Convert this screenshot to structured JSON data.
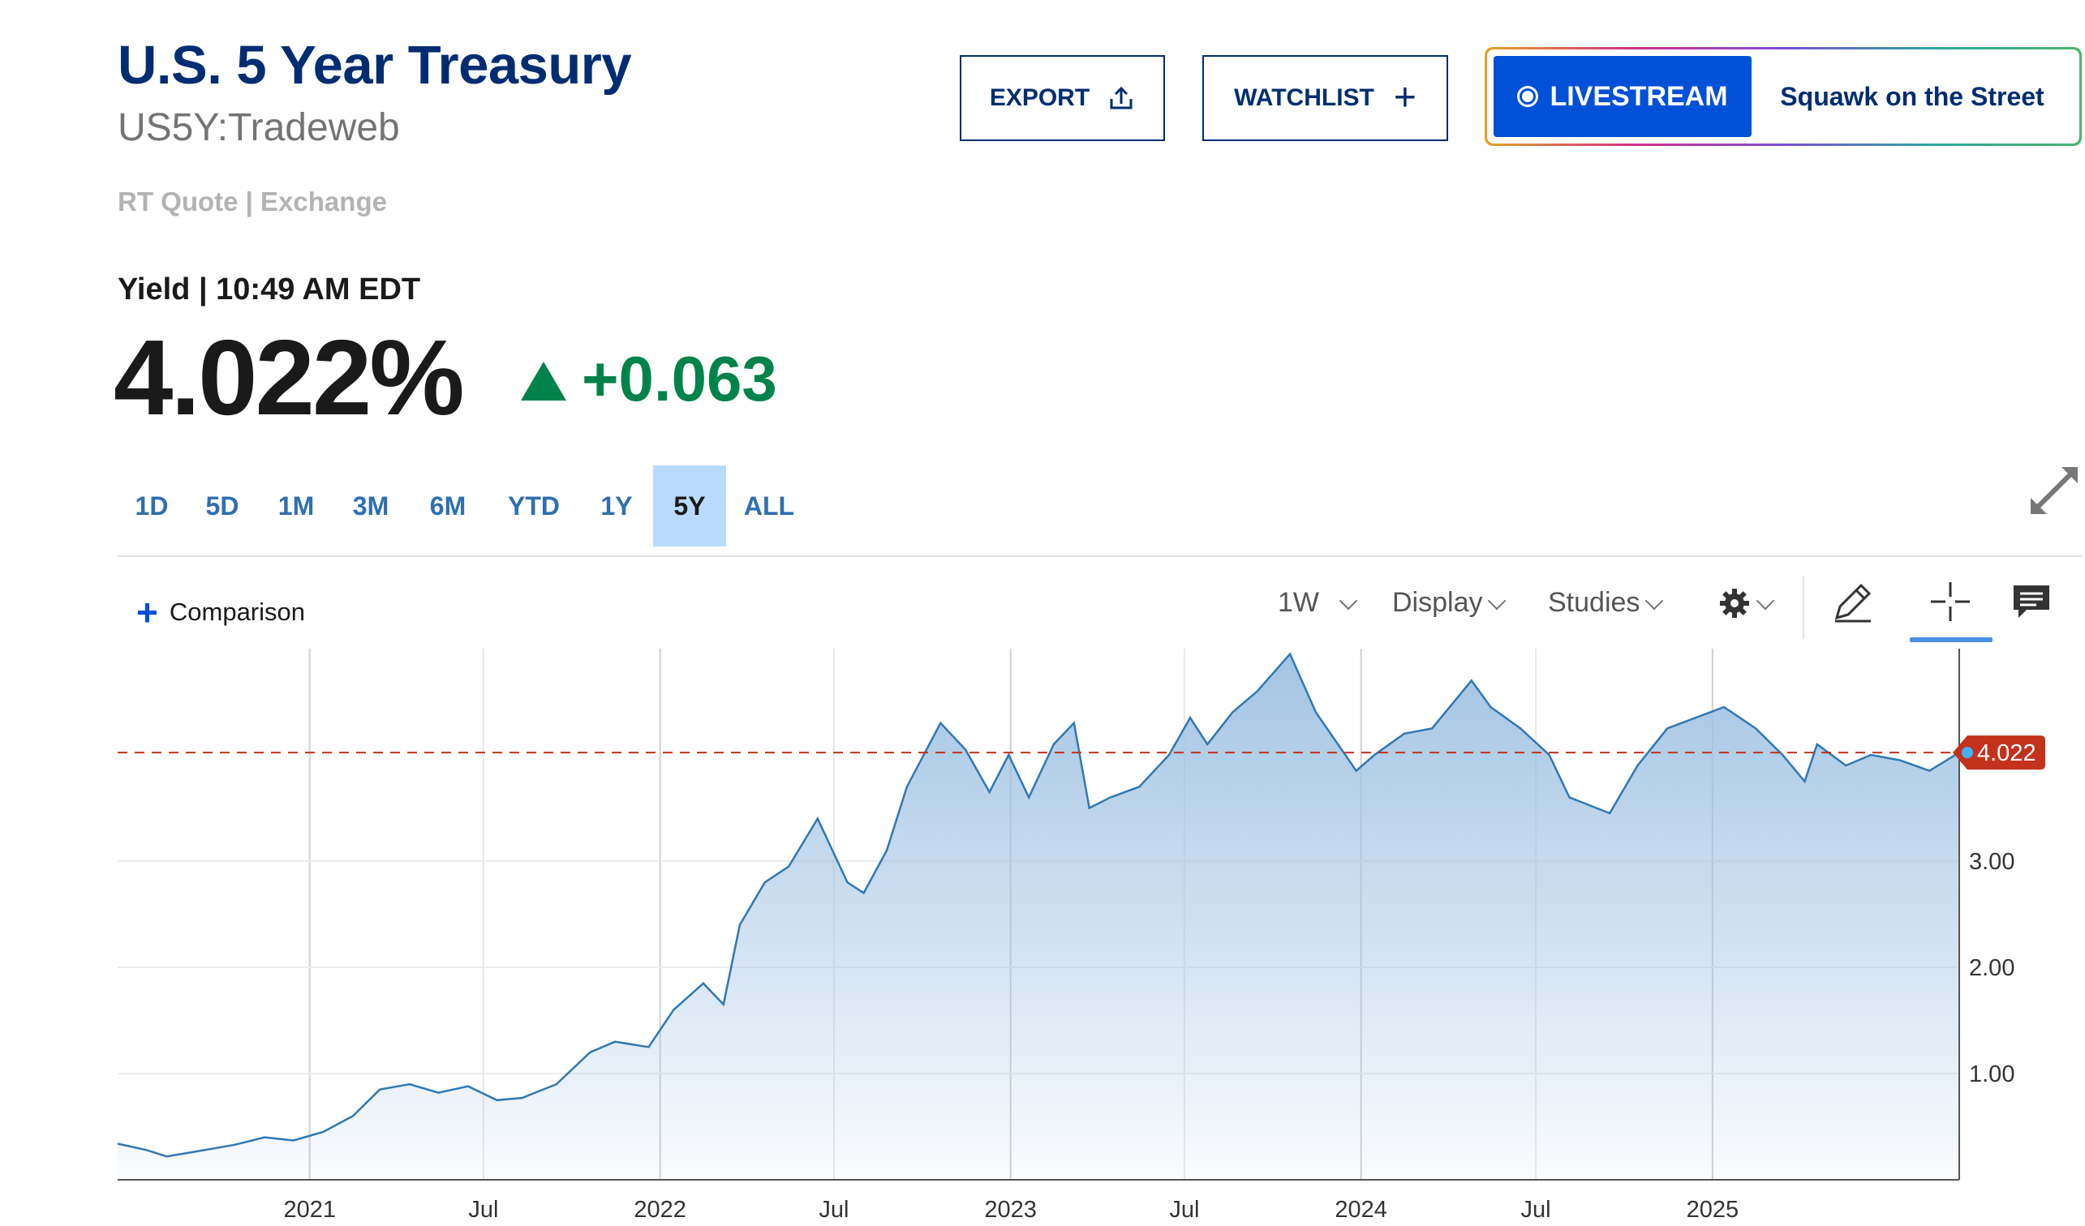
{
  "header": {
    "title": "U.S. 5 Year Treasury",
    "symbol": "US5Y:Tradeweb",
    "quote_type": "RT Quote | Exchange",
    "yield_line": "Yield | 10:49 AM EDT",
    "price": "4.022%",
    "change": "+0.063"
  },
  "actions": {
    "export_label": "EXPORT",
    "watchlist_label": "WATCHLIST",
    "livestream_label": "LIVESTREAM",
    "livestream_show": "Squawk on the Street"
  },
  "ranges": {
    "items": [
      "1D",
      "5D",
      "1M",
      "3M",
      "6M",
      "YTD",
      "1Y",
      "5Y",
      "ALL"
    ],
    "active": "5Y"
  },
  "toolbar": {
    "comparison_label": "Comparison",
    "interval_label": "1W",
    "display_label": "Display",
    "studies_label": "Studies",
    "icons": [
      "gear-icon",
      "pencil-icon",
      "crosshair-icon",
      "comment-icon"
    ]
  },
  "colors": {
    "title": "#002d72",
    "up": "#00834a",
    "line": "#2f78b4",
    "fill_top": "#9ec1e2",
    "current_tag": "#c4311c",
    "livestream": "#0050d8",
    "active_range": "#b9dafc"
  },
  "chart_data": {
    "type": "area",
    "title": "",
    "xlabel": "",
    "ylabel": "",
    "x_ticks": [
      "2021",
      "Jul",
      "2022",
      "Jul",
      "2023",
      "Jul",
      "2024",
      "Jul",
      "2025"
    ],
    "y_ticks": [
      "1.00",
      "2.00",
      "3.00"
    ],
    "ylim": [
      0,
      5
    ],
    "xlim": [
      "2020-06-15",
      "2025-09-15"
    ],
    "grid": true,
    "current_value": 4.022,
    "current_label": "4.022",
    "series": [
      {
        "x": [
          "2020-06-15",
          "2020-07-15",
          "2020-08-05",
          "2020-09-01",
          "2020-10-15",
          "2020-11-15",
          "2020-12-15",
          "2021-01-15",
          "2021-02-15",
          "2021-03-15",
          "2021-04-15",
          "2021-05-15",
          "2021-06-15",
          "2021-07-15",
          "2021-08-10",
          "2021-09-15",
          "2021-10-20",
          "2021-11-15",
          "2021-12-20",
          "2022-01-15",
          "2022-02-15",
          "2022-03-08",
          "2022-03-25",
          "2022-04-20",
          "2022-05-15",
          "2022-06-14",
          "2022-07-15",
          "2022-08-01",
          "2022-08-25",
          "2022-09-15",
          "2022-10-20",
          "2022-11-15",
          "2022-12-10",
          "2022-12-30",
          "2023-01-20",
          "2023-02-15",
          "2023-03-08",
          "2023-03-24",
          "2023-04-15",
          "2023-05-15",
          "2023-06-15",
          "2023-07-07",
          "2023-07-25",
          "2023-08-20",
          "2023-09-15",
          "2023-10-19",
          "2023-11-15",
          "2023-12-27",
          "2024-01-15",
          "2024-02-15",
          "2024-03-15",
          "2024-04-25",
          "2024-05-15",
          "2024-06-15",
          "2024-07-15",
          "2024-08-05",
          "2024-09-16",
          "2024-10-15",
          "2024-11-15",
          "2025-01-13",
          "2025-02-15",
          "2025-03-15",
          "2025-04-07",
          "2025-04-20",
          "2025-05-20",
          "2025-06-15",
          "2025-07-15",
          "2025-08-15",
          "2025-09-15"
        ],
        "y": [
          0.34,
          0.28,
          0.22,
          0.26,
          0.33,
          0.4,
          0.37,
          0.45,
          0.6,
          0.85,
          0.9,
          0.82,
          0.88,
          0.75,
          0.77,
          0.9,
          1.2,
          1.3,
          1.25,
          1.6,
          1.85,
          1.65,
          2.4,
          2.8,
          2.95,
          3.4,
          2.8,
          2.7,
          3.1,
          3.7,
          4.3,
          4.05,
          3.65,
          4.0,
          3.6,
          4.1,
          4.3,
          3.5,
          3.6,
          3.7,
          4.0,
          4.35,
          4.1,
          4.4,
          4.6,
          4.95,
          4.4,
          3.85,
          4.0,
          4.2,
          4.25,
          4.7,
          4.45,
          4.25,
          4.0,
          3.6,
          3.45,
          3.9,
          4.25,
          4.45,
          4.25,
          4.0,
          3.75,
          4.1,
          3.9,
          4.0,
          3.95,
          3.85,
          4.022
        ]
      }
    ]
  }
}
